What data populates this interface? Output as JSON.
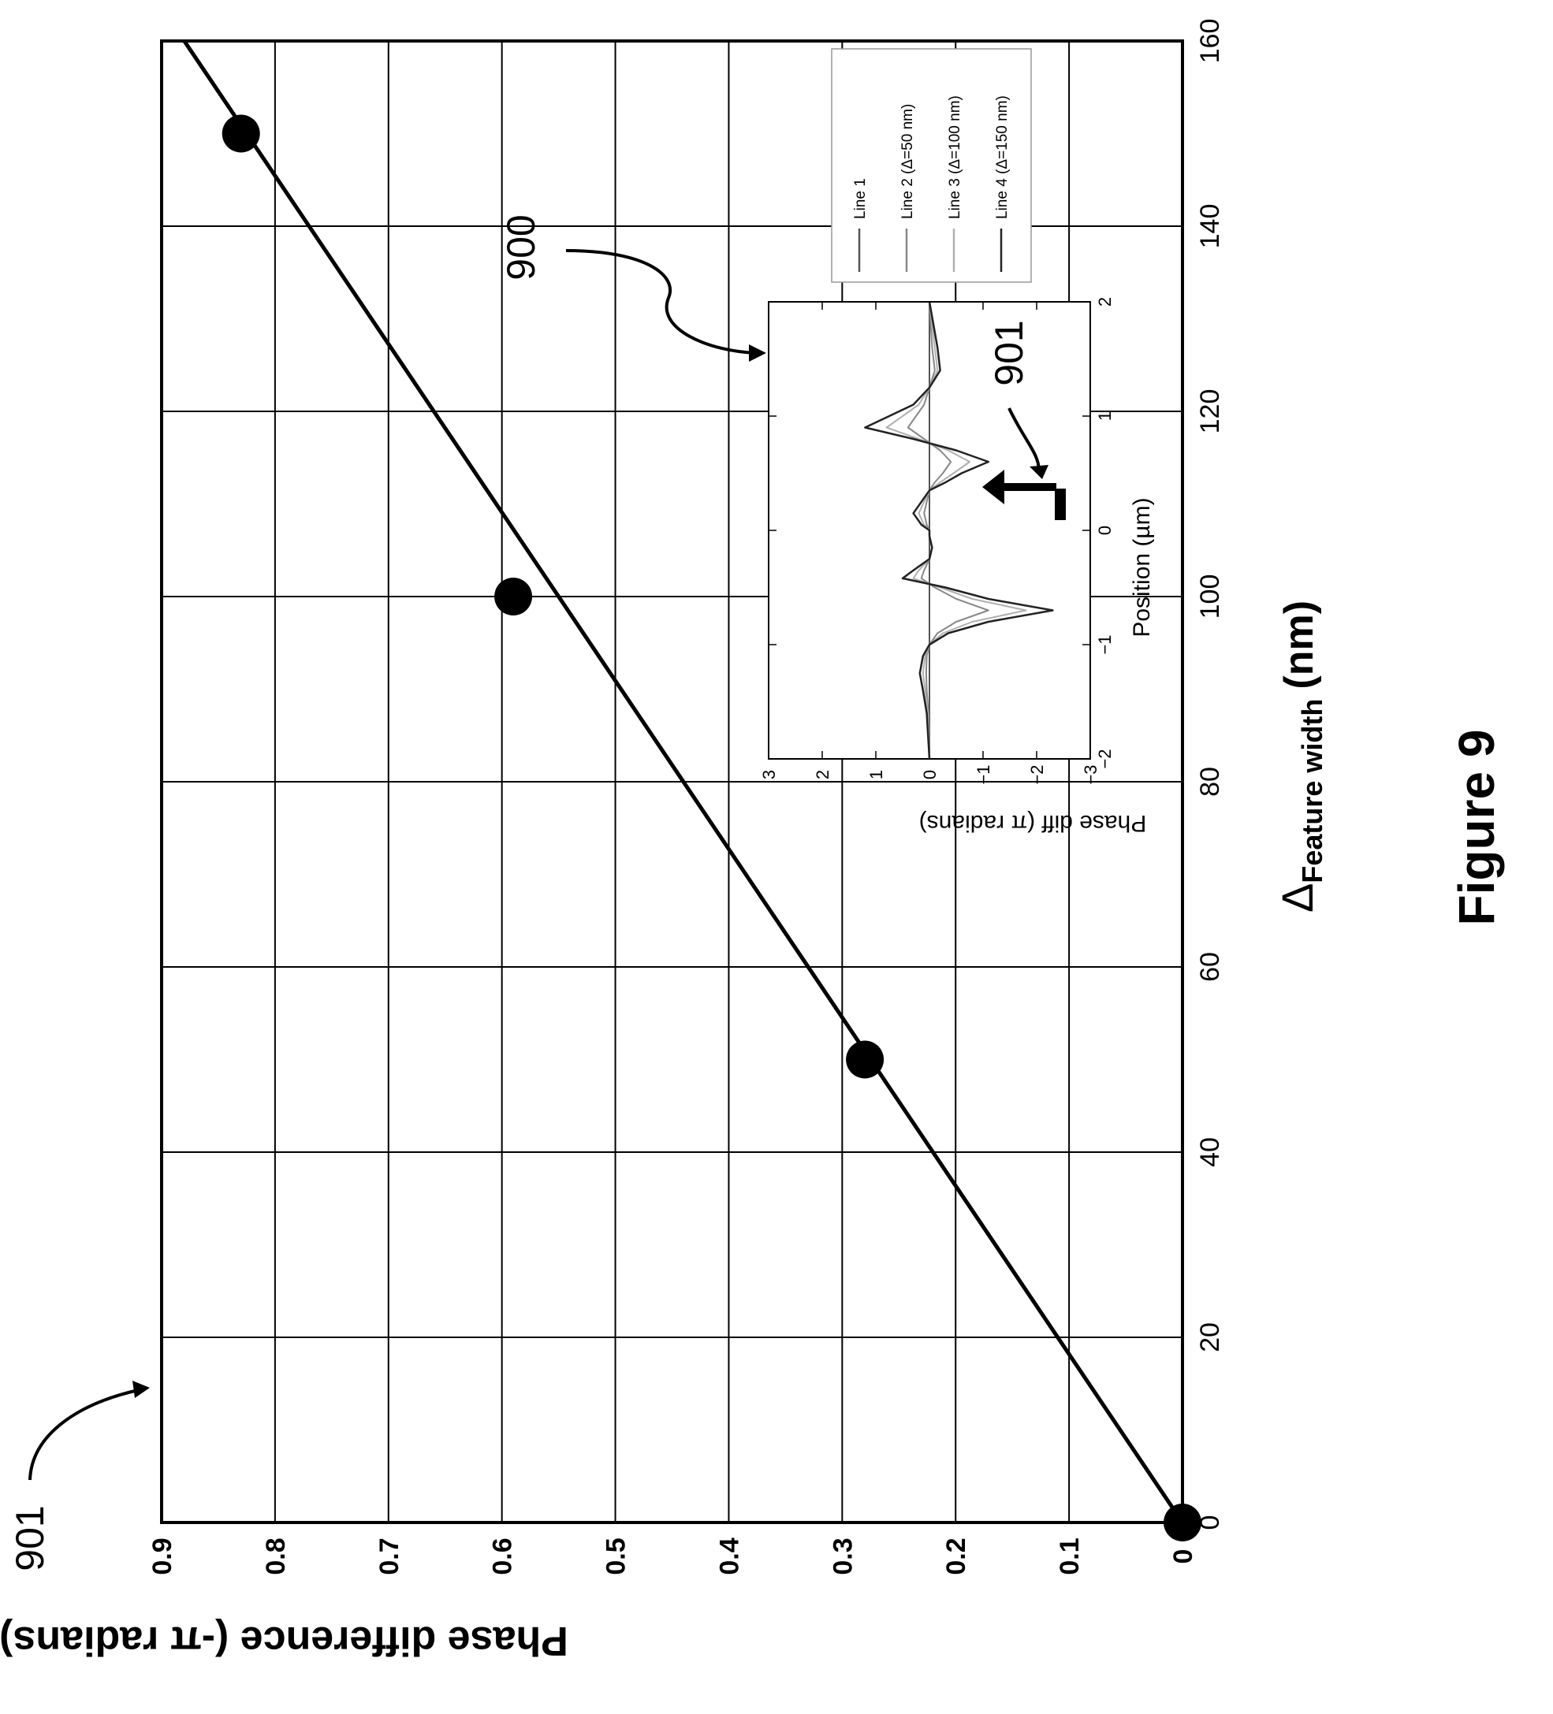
{
  "figure_label": "Figure 9",
  "annotations": {
    "ref_main": "901",
    "ref_inset": "900",
    "ref_inset_peak": "901"
  },
  "colors": {
    "ink": "#000000",
    "grid": "#000000",
    "background": "#ffffff",
    "inset_lines": [
      "#555555",
      "#888888",
      "#b0b0b0",
      "#222222"
    ]
  },
  "chart_data": [
    {
      "type": "scatter",
      "orientation": "rotated 90° counter-clockwise on the page",
      "title": "",
      "xlabel": {
        "symbol": "Δ",
        "subscript": "Feature width",
        "unit": "(nm)"
      },
      "ylabel": "Phase difference (-π radians)",
      "xlim": [
        0,
        160
      ],
      "ylim": [
        0,
        0.9
      ],
      "xticks": [
        0,
        20,
        40,
        60,
        80,
        100,
        120,
        140,
        160
      ],
      "yticks": [
        0,
        0.1,
        0.2,
        0.3,
        0.4,
        0.5,
        0.6,
        0.7,
        0.8,
        0.9
      ],
      "grid": true,
      "legend": "none",
      "series": [
        {
          "kind": "points",
          "x": [
            0,
            50,
            100,
            150
          ],
          "y": [
            0,
            0.28,
            0.59,
            0.83
          ]
        },
        {
          "kind": "fit-line",
          "x": [
            0,
            160
          ],
          "y": [
            0,
            0.88
          ]
        }
      ]
    },
    {
      "type": "line",
      "role": "inset",
      "xlabel": "Position (µm)",
      "ylabel": "Phase diff (π radians)",
      "xlim": [
        -2,
        2
      ],
      "ylim": [
        -3,
        3
      ],
      "xticks": [
        -2,
        -1,
        0,
        1,
        2
      ],
      "yticks": [
        -3,
        -2,
        -1,
        0,
        1,
        2,
        3
      ],
      "xtick_labels": [
        "−2",
        "−1",
        "0",
        "1",
        "2"
      ],
      "ytick_labels": [
        "−3",
        "−2",
        "−1",
        "0",
        "1",
        "2",
        "3"
      ],
      "legend": "right side",
      "series": [
        {
          "name": "Line 1",
          "x": [
            -2,
            2
          ],
          "y": [
            0,
            0
          ]
        },
        {
          "name": "Line 2 (Δ=50 nm)",
          "x": [
            -2,
            -1.6,
            -1.4,
            -1.25,
            -1.1,
            -1.0,
            -0.9,
            -0.8,
            -0.7,
            -0.6,
            -0.5,
            -0.42,
            -0.35,
            -0.25,
            -0.15,
            -0.05,
            0.0,
            0.05,
            0.15,
            0.25,
            0.35,
            0.42,
            0.5,
            0.6,
            0.7,
            0.8,
            0.9,
            1.0,
            1.1,
            1.25,
            1.4,
            1.6,
            2.0
          ],
          "y": [
            0,
            0.02,
            0.05,
            0.06,
            0.05,
            0.0,
            -0.15,
            -0.5,
            -1.1,
            -0.5,
            -0.1,
            0.15,
            0.1,
            0.0,
            -0.05,
            0.0,
            0.0,
            0.05,
            0.1,
            0.05,
            0.0,
            -0.1,
            -0.25,
            -0.4,
            -0.2,
            0.1,
            0.4,
            0.25,
            0.1,
            0.0,
            -0.1,
            -0.05,
            0
          ]
        },
        {
          "name": "Line 3 (Δ=100 nm)",
          "x": [
            -2,
            -1.6,
            -1.4,
            -1.25,
            -1.1,
            -1.0,
            -0.9,
            -0.8,
            -0.7,
            -0.6,
            -0.5,
            -0.42,
            -0.35,
            -0.25,
            -0.15,
            -0.05,
            0.0,
            0.05,
            0.15,
            0.25,
            0.35,
            0.42,
            0.5,
            0.6,
            0.7,
            0.8,
            0.9,
            1.0,
            1.1,
            1.25,
            1.4,
            1.6,
            2.0
          ],
          "y": [
            0,
            0.03,
            0.08,
            0.12,
            0.08,
            0.0,
            -0.25,
            -0.8,
            -1.8,
            -0.8,
            -0.2,
            0.3,
            0.2,
            0.0,
            -0.05,
            0.0,
            0.0,
            0.1,
            0.2,
            0.1,
            0.0,
            -0.2,
            -0.45,
            -0.75,
            -0.35,
            0.2,
            0.8,
            0.5,
            0.2,
            0.0,
            -0.15,
            -0.1,
            0
          ]
        },
        {
          "name": "Line 4 (Δ=150 nm)",
          "x": [
            -2,
            -1.6,
            -1.4,
            -1.25,
            -1.1,
            -1.0,
            -0.9,
            -0.8,
            -0.7,
            -0.6,
            -0.5,
            -0.42,
            -0.35,
            -0.25,
            -0.15,
            -0.05,
            0.0,
            0.05,
            0.15,
            0.25,
            0.35,
            0.42,
            0.5,
            0.6,
            0.7,
            0.8,
            0.9,
            1.0,
            1.1,
            1.25,
            1.4,
            1.6,
            2.0
          ],
          "y": [
            0,
            0.05,
            0.12,
            0.18,
            0.12,
            0.0,
            -0.35,
            -1.1,
            -2.3,
            -1.1,
            -0.3,
            0.5,
            0.3,
            0.0,
            -0.05,
            0.0,
            0.0,
            0.15,
            0.3,
            0.15,
            0.0,
            -0.3,
            -0.6,
            -1.1,
            -0.5,
            0.3,
            1.2,
            0.75,
            0.3,
            0.0,
            -0.2,
            -0.15,
            0
          ]
        }
      ]
    }
  ]
}
